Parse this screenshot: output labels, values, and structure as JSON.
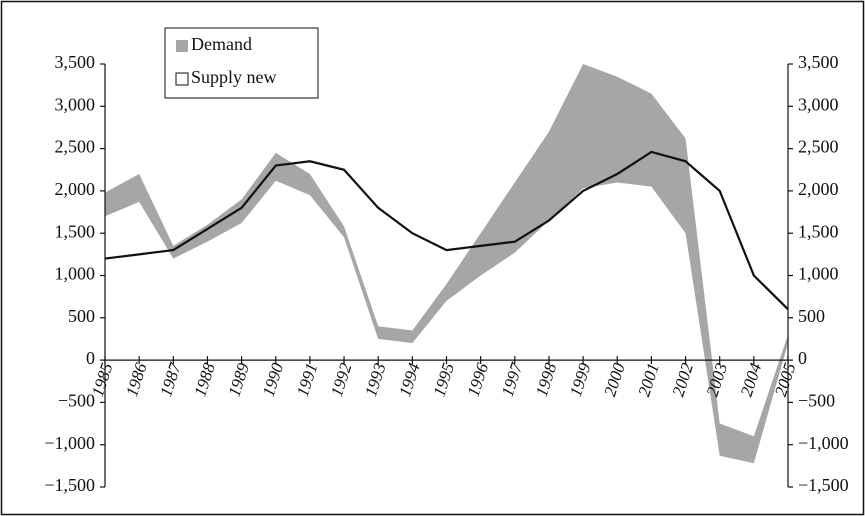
{
  "chart_data": {
    "type": "band_line",
    "categories": [
      "1985",
      "1986",
      "1987",
      "1988",
      "1989",
      "1990",
      "1991",
      "1992",
      "1993",
      "1994",
      "1995",
      "1996",
      "1997",
      "1998",
      "1999",
      "2000",
      "2001",
      "2002",
      "2003",
      "2004",
      "2005"
    ],
    "series": [
      {
        "name": "Demand",
        "color": "#a6a6a6",
        "high": [
          1980,
          2200,
          1350,
          1600,
          1900,
          2450,
          2200,
          1580,
          400,
          350,
          900,
          1500,
          2100,
          2700,
          3500,
          3350,
          3150,
          2620,
          -750,
          -900,
          300
        ],
        "low": [
          1700,
          1870,
          1200,
          1400,
          1620,
          2120,
          1950,
          1450,
          250,
          200,
          700,
          1000,
          1270,
          1650,
          2030,
          2100,
          2050,
          1500,
          -1130,
          -1220,
          200
        ]
      },
      {
        "name": "Supply new",
        "color": "#111111",
        "values": [
          1200,
          1250,
          1300,
          1550,
          1800,
          2300,
          2350,
          2250,
          1800,
          1500,
          1300,
          1350,
          1400,
          1650,
          2000,
          2200,
          2460,
          2350,
          2000,
          1000,
          600
        ]
      }
    ],
    "ylim": [
      -1500,
      3500
    ],
    "yticks": [
      {
        "value": -1500,
        "label": "−1,500"
      },
      {
        "value": -1000,
        "label": "−1,000"
      },
      {
        "value": -500,
        "label": "−500"
      },
      0,
      500,
      {
        "value": 1000,
        "label": "1,000"
      },
      {
        "value": 1500,
        "label": "1,500"
      },
      {
        "value": 2000,
        "label": "2,000"
      },
      {
        "value": 2500,
        "label": "2,500"
      },
      {
        "value": 3000,
        "label": "3,000"
      },
      {
        "value": 3500,
        "label": "3,500"
      }
    ],
    "y2lim": [
      -1500,
      3500
    ],
    "y2ticks": [
      {
        "value": -1500,
        "label": "−1,500"
      },
      {
        "value": -1000,
        "label": "−1,000"
      },
      {
        "value": -500,
        "label": "−500"
      },
      0,
      500,
      {
        "value": 1000,
        "label": "1,000"
      },
      {
        "value": 1500,
        "label": "1,500"
      },
      {
        "value": 2000,
        "label": "2,000"
      },
      {
        "value": 2500,
        "label": "2,500"
      },
      {
        "value": 3000,
        "label": "3,000"
      },
      {
        "value": 3500,
        "label": "3,500"
      }
    ],
    "legend": "upper left"
  }
}
